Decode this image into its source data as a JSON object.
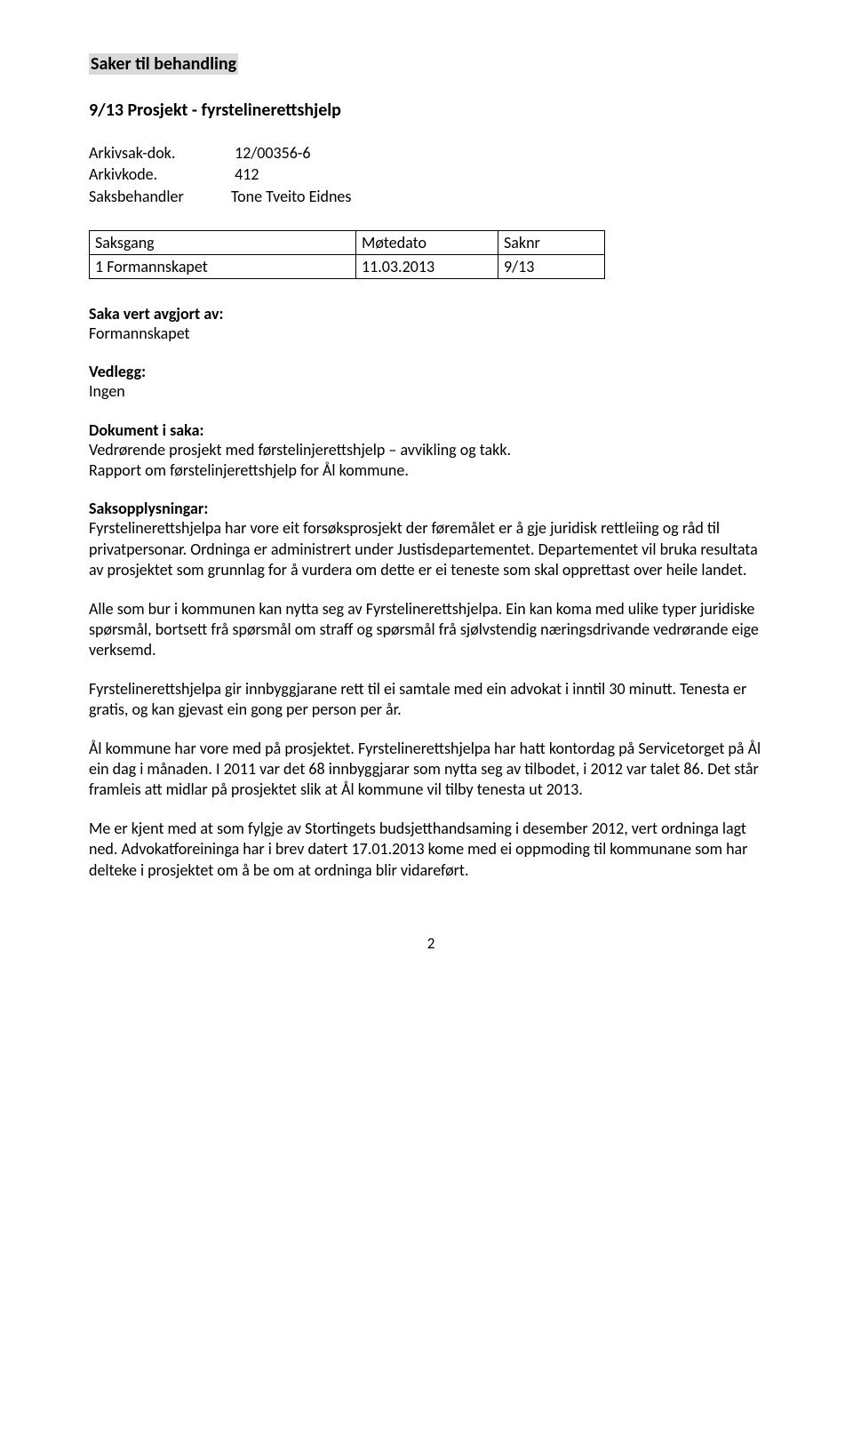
{
  "title_highlight": "Saker til behandling",
  "subject": "9/13 Prosjekt - fyrstelinerettshjelp",
  "meta": {
    "arkivsak_dok_label": "Arkivsak-dok.",
    "arkivsak_dok_value": "12/00356-6",
    "arkivkode_label": "Arkivkode.",
    "arkivkode_value": "412",
    "saksbehandler_label": "Saksbehandler",
    "saksbehandler_value": "Tone Tveito Eidnes"
  },
  "table": {
    "h1": "Saksgang",
    "h2": "Møtedato",
    "h3": "Saknr",
    "r1c1": "1 Formannskapet",
    "r1c2": "11.03.2013",
    "r1c3": "9/13"
  },
  "avgjort_head": "Saka vert avgjort av:",
  "avgjort_body": "Formannskapet",
  "vedlegg_head": "Vedlegg:",
  "vedlegg_body": "Ingen",
  "dokument_head": "Dokument i saka:",
  "dokument_body1": "Vedrørende prosjekt med førstelinjerettshjelp – avvikling og takk.",
  "dokument_body2": "Rapport om førstelinjerettshjelp for Ål kommune.",
  "saksoppl_head": "Saksopplysningar:",
  "p1": "Fyrstelinerettshjelpa har vore eit forsøksprosjekt der føremålet er å gje juridisk rettleiing og råd til privatpersonar. Ordninga er administrert under Justisdepartementet. Departementet vil bruka resultata av prosjektet som grunnlag for å vurdera om dette er ei teneste som skal opprettast over heile landet.",
  "p2": "Alle som bur i kommunen kan nytta seg av Fyrstelinerettshjelpa. Ein kan koma med ulike typer juridiske spørsmål, bortsett frå spørsmål om straff og spørsmål frå sjølvstendig næringsdrivande vedrørande eige verksemd.",
  "p3": "Fyrstelinerettshjelpa gir innbyggjarane rett til ei samtale med ein advokat i inntil 30 minutt. Tenesta er gratis, og kan gjevast ein gong per person per år.",
  "p4": "Ål kommune har vore med på prosjektet. Fyrstelinerettshjelpa har hatt kontordag på Servicetorget på Ål ein dag i månaden. I 2011 var det 68 innbyggjarar som nytta seg av tilbodet, i 2012 var talet 86. Det står framleis att midlar på prosjektet slik at Ål kommune vil tilby tenesta ut 2013.",
  "p5": "Me er kjent med at som fylgje av Stortingets budsjetthandsaming i desember 2012, vert ordninga lagt ned. Advokatforeininga har i brev datert 17.01.2013 kome med ei oppmoding til kommunane som har delteke i prosjektet om å be om at ordninga blir vidareført.",
  "pagenum": "2",
  "colors": {
    "highlight_bg": "#d9d9d9",
    "text": "#000000",
    "page_bg": "#ffffff"
  },
  "typography": {
    "heading_fontsize_pt": 15,
    "body_fontsize_pt": 13.5,
    "font_family": "Calibri"
  }
}
